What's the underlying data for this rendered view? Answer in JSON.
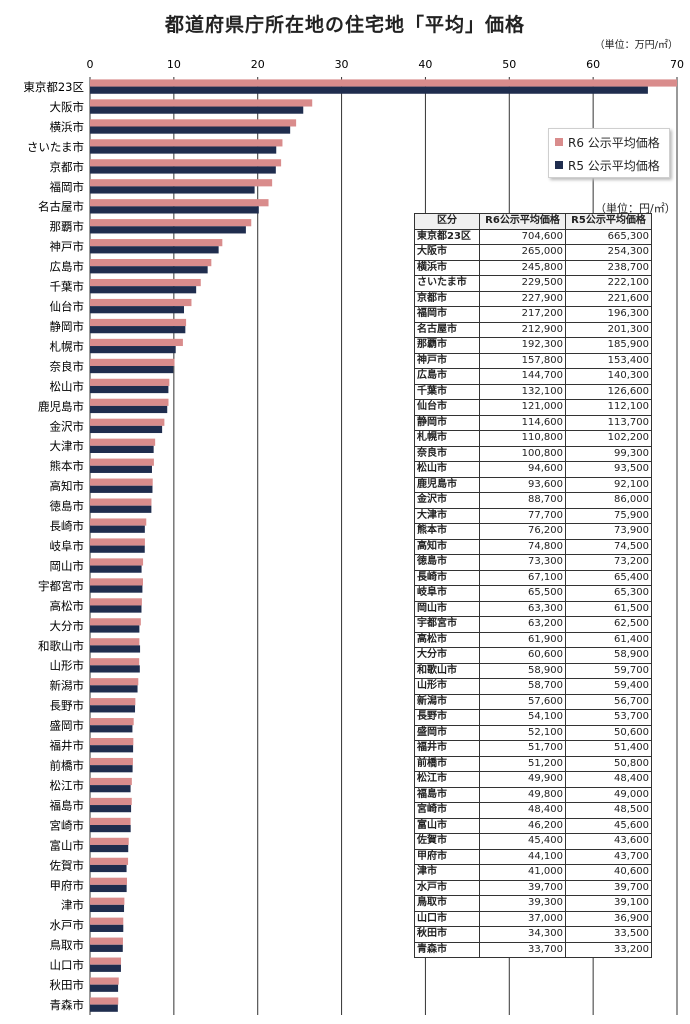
{
  "title": "都道府県庁所在地の住宅地「平均」価格",
  "unit_top": "（単位：万円/㎡）",
  "legend": {
    "r6": "R6 公示平均価格",
    "r5": "R5 公示平均価格"
  },
  "colors": {
    "r6": "#d98c8c",
    "r5": "#1f2d4e",
    "grid": "#333333"
  },
  "table": {
    "unit": "（単位：円/㎡）",
    "headers": [
      "区分",
      "R6公示平均価格",
      "R5公示平均価格"
    ],
    "rows": [
      [
        "東京都23区",
        "704,600",
        "665,300"
      ],
      [
        "大阪市",
        "265,000",
        "254,300"
      ],
      [
        "横浜市",
        "245,800",
        "238,700"
      ],
      [
        "さいたま市",
        "229,500",
        "222,100"
      ],
      [
        "京都市",
        "227,900",
        "221,600"
      ],
      [
        "福岡市",
        "217,200",
        "196,300"
      ],
      [
        "名古屋市",
        "212,900",
        "201,300"
      ],
      [
        "那覇市",
        "192,300",
        "185,900"
      ],
      [
        "神戸市",
        "157,800",
        "153,400"
      ],
      [
        "広島市",
        "144,700",
        "140,300"
      ],
      [
        "千葉市",
        "132,100",
        "126,600"
      ],
      [
        "仙台市",
        "121,000",
        "112,100"
      ],
      [
        "静岡市",
        "114,600",
        "113,700"
      ],
      [
        "札幌市",
        "110,800",
        "102,200"
      ],
      [
        "奈良市",
        "100,800",
        "99,300"
      ],
      [
        "松山市",
        "94,600",
        "93,500"
      ],
      [
        "鹿児島市",
        "93,600",
        "92,100"
      ],
      [
        "金沢市",
        "88,700",
        "86,000"
      ],
      [
        "大津市",
        "77,700",
        "75,900"
      ],
      [
        "熊本市",
        "76,200",
        "73,900"
      ],
      [
        "高知市",
        "74,800",
        "74,500"
      ],
      [
        "徳島市",
        "73,300",
        "73,200"
      ],
      [
        "長崎市",
        "67,100",
        "65,400"
      ],
      [
        "岐阜市",
        "65,500",
        "65,300"
      ],
      [
        "岡山市",
        "63,300",
        "61,500"
      ],
      [
        "宇都宮市",
        "63,200",
        "62,500"
      ],
      [
        "高松市",
        "61,900",
        "61,400"
      ],
      [
        "大分市",
        "60,600",
        "58,900"
      ],
      [
        "和歌山市",
        "58,900",
        "59,700"
      ],
      [
        "山形市",
        "58,700",
        "59,400"
      ],
      [
        "新潟市",
        "57,600",
        "56,700"
      ],
      [
        "長野市",
        "54,100",
        "53,700"
      ],
      [
        "盛岡市",
        "52,100",
        "50,600"
      ],
      [
        "福井市",
        "51,700",
        "51,400"
      ],
      [
        "前橋市",
        "51,200",
        "50,800"
      ],
      [
        "松江市",
        "49,900",
        "48,400"
      ],
      [
        "福島市",
        "49,800",
        "49,000"
      ],
      [
        "宮崎市",
        "48,400",
        "48,500"
      ],
      [
        "富山市",
        "46,200",
        "45,600"
      ],
      [
        "佐賀市",
        "45,400",
        "43,600"
      ],
      [
        "甲府市",
        "44,100",
        "43,700"
      ],
      [
        "津市",
        "41,000",
        "40,600"
      ],
      [
        "水戸市",
        "39,700",
        "39,700"
      ],
      [
        "鳥取市",
        "39,300",
        "39,100"
      ],
      [
        "山口市",
        "37,000",
        "36,900"
      ],
      [
        "秋田市",
        "34,300",
        "33,500"
      ],
      [
        "青森市",
        "33,700",
        "33,200"
      ]
    ]
  },
  "chart_data": {
    "type": "bar",
    "orientation": "horizontal",
    "title": "都道府県庁所在地の住宅地「平均」価格",
    "unit": "（単位：万円/㎡）",
    "xlim": [
      0,
      70
    ],
    "xticks": [
      0,
      10,
      20,
      30,
      40,
      50,
      60,
      70
    ],
    "grid": "vertical",
    "legend_position": "top-right",
    "categories": [
      "東京都23区",
      "大阪市",
      "横浜市",
      "さいたま市",
      "京都市",
      "福岡市",
      "名古屋市",
      "那覇市",
      "神戸市",
      "広島市",
      "千葉市",
      "仙台市",
      "静岡市",
      "札幌市",
      "奈良市",
      "松山市",
      "鹿児島市",
      "金沢市",
      "大津市",
      "熊本市",
      "高知市",
      "徳島市",
      "長崎市",
      "岐阜市",
      "岡山市",
      "宇都宮市",
      "高松市",
      "大分市",
      "和歌山市",
      "山形市",
      "新潟市",
      "長野市",
      "盛岡市",
      "福井市",
      "前橋市",
      "松江市",
      "福島市",
      "宮崎市",
      "富山市",
      "佐賀市",
      "甲府市",
      "津市",
      "水戸市",
      "鳥取市",
      "山口市",
      "秋田市",
      "青森市"
    ],
    "series": [
      {
        "name": "R6 公示平均価格",
        "values": [
          70.46,
          26.5,
          24.58,
          22.95,
          22.79,
          21.72,
          21.29,
          19.23,
          15.78,
          14.47,
          13.21,
          12.1,
          11.46,
          11.08,
          10.08,
          9.46,
          9.36,
          8.87,
          7.77,
          7.62,
          7.48,
          7.33,
          6.71,
          6.55,
          6.33,
          6.32,
          6.19,
          6.06,
          5.89,
          5.87,
          5.76,
          5.41,
          5.21,
          5.17,
          5.12,
          4.99,
          4.98,
          4.84,
          4.62,
          4.54,
          4.41,
          4.1,
          3.97,
          3.93,
          3.7,
          3.43,
          3.37
        ]
      },
      {
        "name": "R5 公示平均価格",
        "values": [
          66.53,
          25.43,
          23.87,
          22.21,
          22.16,
          19.63,
          20.13,
          18.59,
          15.34,
          14.03,
          12.66,
          11.21,
          11.37,
          10.22,
          9.93,
          9.35,
          9.21,
          8.6,
          7.59,
          7.39,
          7.45,
          7.32,
          6.54,
          6.53,
          6.15,
          6.25,
          6.14,
          5.89,
          5.97,
          5.94,
          5.67,
          5.37,
          5.06,
          5.14,
          5.08,
          4.84,
          4.9,
          4.85,
          4.56,
          4.36,
          4.37,
          4.06,
          3.97,
          3.91,
          3.69,
          3.35,
          3.32
        ]
      }
    ]
  }
}
